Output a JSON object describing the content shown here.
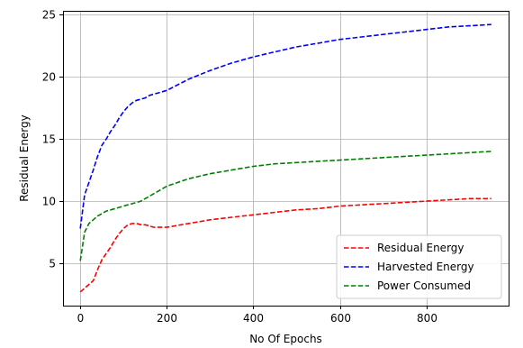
{
  "chart_data": {
    "type": "line",
    "title": "",
    "xlabel": "No Of Epochs",
    "ylabel": "Residual Energy",
    "xlim": [
      -40,
      990
    ],
    "ylim": [
      1.6,
      25.3
    ],
    "xticks": [
      0,
      200,
      400,
      600,
      800
    ],
    "yticks": [
      5,
      10,
      15,
      20,
      25
    ],
    "grid": true,
    "legend": "lower-right",
    "series": [
      {
        "name": "Residual Energy",
        "color": "#ff0000",
        "linestyle": "dashed",
        "x": [
          0,
          10,
          20,
          30,
          40,
          50,
          60,
          70,
          80,
          90,
          100,
          110,
          120,
          130,
          140,
          150,
          160,
          170,
          180,
          190,
          200,
          250,
          300,
          350,
          400,
          450,
          500,
          550,
          600,
          650,
          700,
          750,
          800,
          850,
          900,
          950
        ],
        "y": [
          2.7,
          3.0,
          3.3,
          3.6,
          4.5,
          5.3,
          5.8,
          6.3,
          6.9,
          7.4,
          7.8,
          8.1,
          8.2,
          8.2,
          8.1,
          8.1,
          8.0,
          7.9,
          7.9,
          7.9,
          7.9,
          8.2,
          8.5,
          8.7,
          8.9,
          9.1,
          9.3,
          9.4,
          9.6,
          9.7,
          9.8,
          9.9,
          10.0,
          10.1,
          10.2,
          10.2
        ]
      },
      {
        "name": "Harvested Energy",
        "color": "#0000ff",
        "linestyle": "dashed",
        "x": [
          0,
          10,
          20,
          30,
          40,
          50,
          60,
          70,
          80,
          90,
          100,
          110,
          120,
          130,
          140,
          150,
          160,
          170,
          180,
          190,
          200,
          250,
          300,
          350,
          400,
          450,
          500,
          550,
          600,
          650,
          700,
          750,
          800,
          850,
          900,
          950
        ],
        "y": [
          7.8,
          10.5,
          11.5,
          12.5,
          13.6,
          14.5,
          15.0,
          15.6,
          16.1,
          16.7,
          17.2,
          17.6,
          17.9,
          18.1,
          18.2,
          18.3,
          18.5,
          18.6,
          18.7,
          18.8,
          18.9,
          19.8,
          20.5,
          21.1,
          21.6,
          22.0,
          22.4,
          22.7,
          23.0,
          23.2,
          23.4,
          23.6,
          23.8,
          24.0,
          24.1,
          24.2
        ]
      },
      {
        "name": "Power Consumed",
        "color": "#008000",
        "linestyle": "dashed",
        "x": [
          0,
          10,
          20,
          30,
          40,
          50,
          60,
          70,
          80,
          90,
          100,
          110,
          120,
          130,
          140,
          150,
          160,
          170,
          180,
          190,
          200,
          250,
          300,
          350,
          400,
          450,
          500,
          550,
          600,
          650,
          700,
          750,
          800,
          850,
          900,
          950
        ],
        "y": [
          5.2,
          7.5,
          8.2,
          8.5,
          8.8,
          9.0,
          9.2,
          9.3,
          9.4,
          9.5,
          9.6,
          9.7,
          9.8,
          9.9,
          10.0,
          10.2,
          10.4,
          10.6,
          10.8,
          11.0,
          11.2,
          11.8,
          12.2,
          12.5,
          12.8,
          13.0,
          13.1,
          13.2,
          13.3,
          13.4,
          13.5,
          13.6,
          13.7,
          13.8,
          13.9,
          14.0
        ]
      }
    ]
  }
}
